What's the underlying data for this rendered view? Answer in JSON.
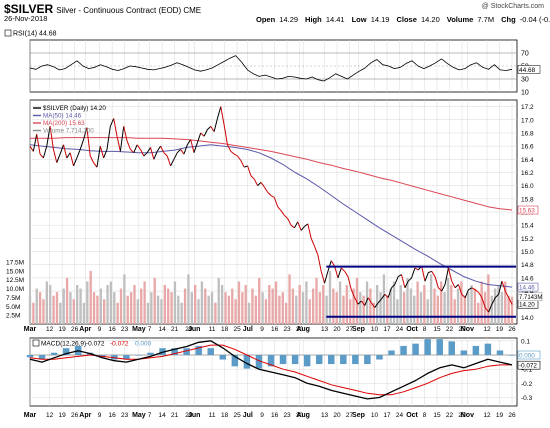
{
  "header": {
    "symbol": "$SILVER",
    "description": "Silver - Continuous Contract (EOD) CME",
    "date": "26-Nov-2018",
    "logo": "@ StockCharts.com",
    "quote": [
      {
        "label": "Open",
        "value": "14.29"
      },
      {
        "label": "High",
        "value": "14.41"
      },
      {
        "label": "Low",
        "value": "14.19"
      },
      {
        "label": "Close",
        "value": "14.20"
      },
      {
        "label": "Volume",
        "value": "7.7M"
      },
      {
        "label": "Chg",
        "value": "-0.04 (-0.27%)"
      }
    ]
  },
  "colors": {
    "price": "#cc0000",
    "price_up": "#000000",
    "ma50": "#5a5aa8",
    "ma200": "#dd4455",
    "volume_up": "#bfbfbf",
    "volume_down": "#e8a8a8",
    "trend_lines": "#000080",
    "grid": "#d8d8d8",
    "macd_line": "#000000",
    "signal_line": "#dd0000",
    "histogram": "#5a9bc8"
  },
  "chart_data": [
    {
      "type": "line",
      "panel": "rsi",
      "legend": "RSI(14) 44.68",
      "ylim": [
        10,
        90
      ],
      "yticks": [
        "70",
        "50",
        "30",
        "10"
      ],
      "last_label": "44.68",
      "series": [
        {
          "name": "RSI(14)",
          "x_start": "2018-03-01",
          "values": [
            47,
            45,
            50,
            52,
            49,
            44,
            46,
            52,
            58,
            50,
            46,
            48,
            52,
            49,
            45,
            43,
            46,
            50,
            49,
            47,
            45,
            44,
            46,
            48,
            51,
            55,
            52,
            48,
            44,
            42,
            44,
            47,
            52,
            57,
            62,
            66,
            56,
            44,
            38,
            34,
            36,
            33,
            30,
            31,
            34,
            33,
            31,
            30,
            33,
            29,
            27,
            32,
            38,
            34,
            30,
            36,
            42,
            47,
            55,
            60,
            52,
            50,
            46,
            48,
            54,
            58,
            50,
            46,
            50,
            55,
            61,
            54,
            48,
            44,
            46,
            52,
            55,
            48,
            45,
            52,
            44,
            43,
            45
          ]
        }
      ]
    },
    {
      "type": "line",
      "panel": "price",
      "legend": [
        "$SILVER (Daily) 14.20",
        "MA(50) 14.46",
        "MA(200) 15.63",
        "Volume 7,714,300"
      ],
      "ylim": [
        13.9,
        17.3
      ],
      "yticks": [
        "17.2",
        "17.0",
        "16.8",
        "16.6",
        "16.4",
        "16.2",
        "16.0",
        "15.8",
        "15.6",
        "15.4",
        "15.2",
        "15.0",
        "14.8",
        "14.6",
        "14.4",
        "14.2",
        "14.0"
      ],
      "last_labels": [
        "15.63",
        "14.46",
        "14.20"
      ],
      "trend_lines": [
        {
          "from": "2018-08-14",
          "to": "2018-11-26",
          "y": 14.77
        },
        {
          "from": "2018-08-14",
          "to": "2018-11-26",
          "y": 14.01
        }
      ],
      "series": [
        {
          "name": "$SILVER (Daily)",
          "x_start": "2018-03-01",
          "values": [
            16.6,
            16.52,
            16.78,
            16.48,
            16.42,
            16.6,
            16.9,
            16.55,
            16.35,
            16.48,
            16.62,
            16.42,
            16.5,
            16.3,
            16.42,
            16.55,
            16.7,
            16.88,
            16.45,
            16.35,
            16.28,
            16.6,
            16.42,
            16.55,
            16.9,
            17.02,
            16.75,
            16.52,
            16.9,
            16.68,
            16.55,
            16.5,
            16.62,
            16.55,
            16.45,
            16.5,
            16.58,
            16.4,
            16.52,
            16.6,
            16.5,
            16.45,
            16.3,
            16.4,
            16.5,
            16.55,
            16.48,
            16.62,
            16.7,
            16.5,
            16.65,
            16.8,
            16.75,
            16.85,
            16.9,
            16.82,
            17.02,
            17.2,
            16.92,
            16.62,
            16.52,
            16.48,
            16.45,
            16.38,
            16.28,
            16.3,
            16.15,
            16.1,
            16.0,
            16.05,
            15.98,
            15.9,
            15.85,
            15.82,
            15.68,
            15.62,
            15.55,
            15.5,
            15.4,
            15.36,
            15.45,
            15.32,
            15.38,
            15.42,
            15.2,
            15.08,
            14.95,
            14.7,
            14.52,
            14.7,
            14.86,
            14.78,
            14.6,
            14.75,
            14.7,
            14.62,
            14.42,
            14.3,
            14.2,
            14.25,
            14.18,
            14.3,
            14.22,
            14.15,
            14.22,
            14.28,
            14.35,
            14.3,
            14.45,
            14.5,
            14.62,
            14.65,
            14.45,
            14.55,
            14.6,
            14.75,
            14.72,
            14.78,
            14.55,
            14.68,
            14.7,
            14.62,
            14.45,
            14.4,
            14.5,
            14.75,
            14.55,
            14.45,
            14.5,
            14.35,
            14.3,
            14.42,
            14.45,
            14.42,
            14.38,
            14.3,
            14.15,
            14.08,
            14.2,
            14.3,
            14.35,
            14.55,
            14.4,
            14.3,
            14.2
          ]
        },
        {
          "name": "MA(50)",
          "x_start": "2018-03-01",
          "values": [
            16.62,
            16.6,
            16.58,
            16.56,
            16.55,
            16.53,
            16.52,
            16.52,
            16.51,
            16.5,
            16.5,
            16.52,
            16.54,
            16.58,
            16.6,
            16.62,
            16.6,
            16.58,
            16.55,
            16.5,
            16.42,
            16.32,
            16.2,
            16.1,
            15.98,
            15.85,
            15.72,
            15.6,
            15.48,
            15.36,
            15.25,
            15.14,
            15.03,
            14.93,
            14.82,
            14.72,
            14.62,
            14.55,
            14.5,
            14.48,
            14.46
          ]
        },
        {
          "name": "MA(200)",
          "x_start": "2018-03-01",
          "values": [
            16.72,
            16.72,
            16.72,
            16.73,
            16.73,
            16.73,
            16.73,
            16.73,
            16.73,
            16.72,
            16.72,
            16.72,
            16.71,
            16.7,
            16.68,
            16.66,
            16.64,
            16.61,
            16.58,
            16.55,
            16.52,
            16.48,
            16.44,
            16.4,
            16.35,
            16.31,
            16.26,
            16.22,
            16.17,
            16.12,
            16.08,
            16.03,
            15.98,
            15.93,
            15.88,
            15.83,
            15.78,
            15.73,
            15.68,
            15.65,
            15.63
          ]
        },
        {
          "name": "Volume",
          "x_start": "2018-03-01",
          "values_millions": [
            8,
            6,
            10,
            9,
            7,
            12,
            11,
            8,
            9,
            6,
            10,
            13,
            9,
            7,
            11,
            10,
            6,
            12,
            15,
            9,
            8,
            10,
            7,
            11,
            12,
            9,
            6,
            10,
            14,
            8,
            9,
            11,
            7,
            10,
            12,
            6,
            9,
            13,
            8,
            7,
            11,
            10,
            9,
            12,
            8,
            6,
            10,
            14,
            9,
            11,
            7,
            12,
            10,
            8,
            9,
            6,
            13,
            11,
            9,
            8,
            10,
            7,
            12,
            9,
            11,
            6,
            10,
            8,
            13,
            9,
            7,
            11,
            10,
            12,
            8,
            9,
            6,
            14,
            10,
            8,
            11,
            9,
            12,
            7,
            10,
            13,
            9,
            11,
            8,
            15,
            10,
            9,
            12,
            8,
            11,
            7,
            10,
            13,
            9,
            8,
            12,
            10,
            6,
            11,
            9,
            14,
            8,
            10,
            12,
            7,
            11,
            9,
            13,
            10,
            8,
            12,
            9,
            11,
            7,
            14,
            10,
            8,
            12,
            9,
            13,
            11,
            7,
            10,
            12,
            8,
            9,
            11,
            10,
            6,
            12,
            9,
            14,
            8,
            10,
            11,
            9,
            12,
            8,
            7.7
          ],
          "ylim": [
            0,
            17.5
          ],
          "yticks": [
            "17.5M",
            "15.0M",
            "12.5M",
            "10.0M",
            "7.5M",
            "5.0M",
            "2.5M"
          ],
          "last_label": "7.7143M"
        }
      ],
      "x_labels": [
        "Mar",
        "12",
        "19",
        "26",
        "Apr",
        "9",
        "16",
        "23",
        "May",
        "7",
        "14",
        "21",
        "29",
        "Jun",
        "11",
        "18",
        "25",
        "Jul",
        "9",
        "16",
        "23",
        "30",
        "Aug",
        "13",
        "20",
        "27",
        "Sep",
        "10",
        "17",
        "24",
        "Oct",
        "8",
        "15",
        "22",
        "29",
        "Nov",
        "12",
        "19",
        "26"
      ]
    },
    {
      "type": "line",
      "panel": "macd",
      "legend": [
        "MACD(12,26,9)",
        "-0.072",
        "-0.072",
        "0.000"
      ],
      "ylim": [
        -0.36,
        0.12
      ],
      "yticks": [
        "0.1",
        "0.0",
        "-0.1",
        "-0.2",
        "-0.3"
      ],
      "last_labels": [
        "0.000",
        "-0.072"
      ],
      "series": [
        {
          "name": "MACD",
          "x_start": "2018-03-01",
          "values": [
            -0.03,
            -0.05,
            -0.02,
            0.01,
            0.03,
            0.01,
            -0.02,
            -0.04,
            -0.05,
            -0.03,
            -0.01,
            0.02,
            0.04,
            0.06,
            0.09,
            0.1,
            0.05,
            -0.01,
            -0.06,
            -0.1,
            -0.12,
            -0.14,
            -0.16,
            -0.2,
            -0.22,
            -0.25,
            -0.27,
            -0.29,
            -0.31,
            -0.3,
            -0.26,
            -0.22,
            -0.18,
            -0.13,
            -0.09,
            -0.07,
            -0.09,
            -0.06,
            -0.03,
            -0.05,
            -0.07
          ]
        },
        {
          "name": "Signal",
          "x_start": "2018-03-01",
          "values": [
            -0.02,
            -0.03,
            -0.03,
            -0.02,
            -0.01,
            0.0,
            -0.01,
            -0.02,
            -0.03,
            -0.03,
            -0.02,
            -0.01,
            0.01,
            0.03,
            0.05,
            0.07,
            0.07,
            0.04,
            0.0,
            -0.04,
            -0.07,
            -0.1,
            -0.12,
            -0.15,
            -0.18,
            -0.21,
            -0.23,
            -0.25,
            -0.27,
            -0.28,
            -0.28,
            -0.26,
            -0.23,
            -0.2,
            -0.16,
            -0.13,
            -0.11,
            -0.1,
            -0.08,
            -0.07,
            -0.07
          ]
        }
      ]
    }
  ]
}
